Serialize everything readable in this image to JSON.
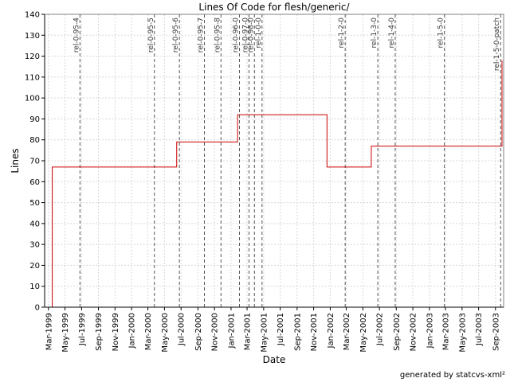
{
  "chart_data": {
    "type": "line",
    "title": "Lines Of Code for flesh/generic/",
    "xlabel": "Date",
    "ylabel": "Lines",
    "ylim": [
      0,
      140
    ],
    "y_ticks": [
      0,
      10,
      20,
      30,
      40,
      50,
      60,
      70,
      80,
      90,
      100,
      110,
      120,
      130,
      140
    ],
    "xlim": [
      "1999-02-15",
      "2003-10-01"
    ],
    "x_ticks": [
      {
        "date": "1999-03-01",
        "label": "Mar-1999"
      },
      {
        "date": "1999-05-01",
        "label": "May-1999"
      },
      {
        "date": "1999-07-01",
        "label": "Jul-1999"
      },
      {
        "date": "1999-09-01",
        "label": "Sep-1999"
      },
      {
        "date": "1999-11-01",
        "label": "Nov-1999"
      },
      {
        "date": "2000-01-01",
        "label": "Jan-2000"
      },
      {
        "date": "2000-03-01",
        "label": "Mar-2000"
      },
      {
        "date": "2000-05-01",
        "label": "May-2000"
      },
      {
        "date": "2000-07-01",
        "label": "Jul-2000"
      },
      {
        "date": "2000-09-01",
        "label": "Sep-2000"
      },
      {
        "date": "2000-11-01",
        "label": "Nov-2000"
      },
      {
        "date": "2001-01-01",
        "label": "Jan-2001"
      },
      {
        "date": "2001-03-01",
        "label": "Mar-2001"
      },
      {
        "date": "2001-05-01",
        "label": "May-2001"
      },
      {
        "date": "2001-07-01",
        "label": "Jul-2001"
      },
      {
        "date": "2001-09-01",
        "label": "Sep-2001"
      },
      {
        "date": "2001-11-01",
        "label": "Nov-2001"
      },
      {
        "date": "2002-01-01",
        "label": "Jan-2002"
      },
      {
        "date": "2002-03-01",
        "label": "Mar-2002"
      },
      {
        "date": "2002-05-01",
        "label": "May-2002"
      },
      {
        "date": "2002-07-01",
        "label": "Jul-2002"
      },
      {
        "date": "2002-09-01",
        "label": "Sep-2002"
      },
      {
        "date": "2002-11-01",
        "label": "Nov-2002"
      },
      {
        "date": "2003-01-01",
        "label": "Jan-2003"
      },
      {
        "date": "2003-03-01",
        "label": "Mar-2003"
      },
      {
        "date": "2003-05-01",
        "label": "May-2003"
      },
      {
        "date": "2003-07-01",
        "label": "Jul-2003"
      },
      {
        "date": "2003-09-01",
        "label": "Sep-2003"
      }
    ],
    "grid": true,
    "series": [
      {
        "color": "#cc0000",
        "step": true,
        "points": [
          {
            "x": "1999-03-15",
            "y": 0
          },
          {
            "x": "1999-03-15",
            "y": 67
          },
          {
            "x": "2000-06-15",
            "y": 79
          },
          {
            "x": "2001-01-25",
            "y": 92
          },
          {
            "x": "2001-12-20",
            "y": 67
          },
          {
            "x": "2002-06-01",
            "y": 77
          },
          {
            "x": "2003-09-25",
            "y": 118
          }
        ]
      }
    ],
    "annotations": [
      {
        "x": "1999-06-25",
        "label": "rel-0-95-4"
      },
      {
        "x": "2000-03-25",
        "label": "rel-0-95-5"
      },
      {
        "x": "2000-06-25",
        "label": "rel-0-95-6"
      },
      {
        "x": "2000-09-25",
        "label": "rel-0-95-7"
      },
      {
        "x": "2000-11-25",
        "label": "rel-0-95-8"
      },
      {
        "x": "2001-02-01",
        "label": "rel-0-96-0"
      },
      {
        "x": "2001-03-08",
        "label": "rel-0-97-0"
      },
      {
        "x": "2001-03-28",
        "label": "rel-0-98-0"
      },
      {
        "x": "2001-04-25",
        "label": "rel-1-0-0"
      },
      {
        "x": "2002-02-25",
        "label": "rel-1-2-0"
      },
      {
        "x": "2002-06-25",
        "label": "rel-1-3-0"
      },
      {
        "x": "2002-08-28",
        "label": "rel-1-4-0"
      },
      {
        "x": "2003-02-25",
        "label": "rel-1-5-0"
      },
      {
        "x": "2003-09-20",
        "label": "rel-1-5-0-patch"
      }
    ],
    "colors": {
      "series": "#cc0000",
      "grid": "#d8d8d8",
      "annotation": "#555555",
      "axis": "#000000"
    }
  },
  "footer": {
    "generated_by": "generated by statcvs-xml²"
  }
}
